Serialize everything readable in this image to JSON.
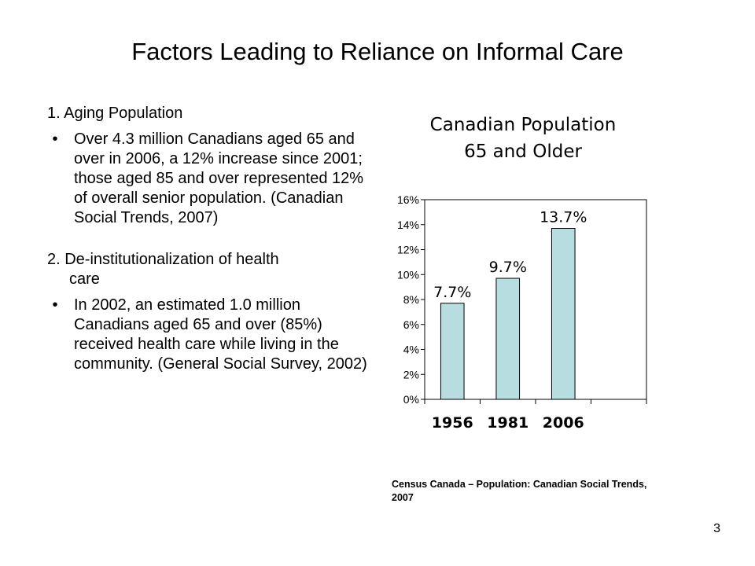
{
  "slide": {
    "title": "Factors Leading to Reliance on Informal Care",
    "page_number": "3",
    "source": "Census Canada – Population: Canadian Social Trends, 2007"
  },
  "sections": [
    {
      "heading": "1. Aging Population",
      "heading_continuation": "",
      "bullet": "Over 4.3 million Canadians aged 65 and over in 2006, a 12% increase since 2001; those aged 85 and over represented 12% of overall senior population. (Canadian Social Trends, 2007)"
    },
    {
      "heading": "2. De-institutionalization of health",
      "heading_continuation": "care",
      "bullet": "In 2002, an estimated 1.0 million Canadians aged 65 and over (85%)  received health care while living in the community. (General Social Survey, 2002)"
    }
  ],
  "bullet_glyph": "•",
  "chart_data": {
    "type": "bar",
    "title_line1": "Canadian Population",
    "title_line2": "65 and Older",
    "categories": [
      "1956",
      "1981",
      "2006"
    ],
    "values": [
      7.7,
      9.7,
      13.7
    ],
    "value_labels": [
      "7.7%",
      "9.7%",
      "13.7%"
    ],
    "ylim": [
      0,
      16
    ],
    "yticks": [
      0,
      2,
      4,
      6,
      8,
      10,
      12,
      14,
      16
    ],
    "ytick_labels": [
      "0%",
      "2%",
      "4%",
      "6%",
      "8%",
      "10%",
      "12%",
      "14%",
      "16%"
    ],
    "slot_count": 4,
    "grid": false,
    "legend": "none",
    "bar_color": "#b7dde0",
    "bar_stroke": "#000000"
  }
}
